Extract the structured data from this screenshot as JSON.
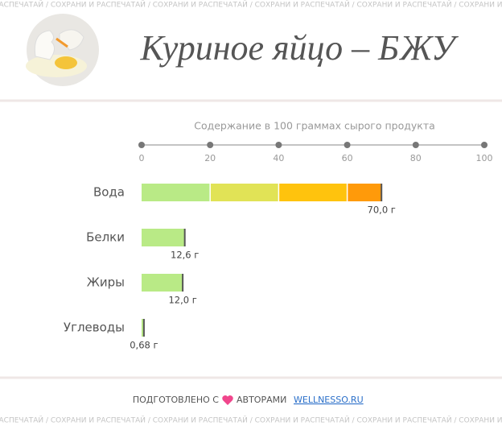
{
  "chart_data": {
    "type": "bar",
    "orientation": "horizontal",
    "title": "Куриное яйцо – БЖУ",
    "subtitle": "Содержание в 100 граммах сырого продукта",
    "categories": [
      "Вода",
      "Белки",
      "Жиры",
      "Углеводы"
    ],
    "values": [
      70,
      12.6,
      12,
      0.68
    ],
    "value_labels": [
      "70,0 г",
      "12,6 г",
      "12,0 г",
      "0,68 г"
    ],
    "band_colors": [
      "#b9ea86",
      "#e1e356",
      "#ffc30d",
      "#ff9a0a",
      "#f4511e"
    ],
    "xlim": [
      0,
      100
    ],
    "xticks": [
      0,
      20,
      40,
      60,
      80,
      100
    ],
    "watermark": "СОХРАНИ И РАСПЕЧАТАЙ",
    "watermark_separator": " / "
  },
  "footer": {
    "prefix": "ПОДГОТОВЛЕНО С",
    "suffix": "АВТОРАМИ",
    "link": "WELLNESSO.RU"
  }
}
